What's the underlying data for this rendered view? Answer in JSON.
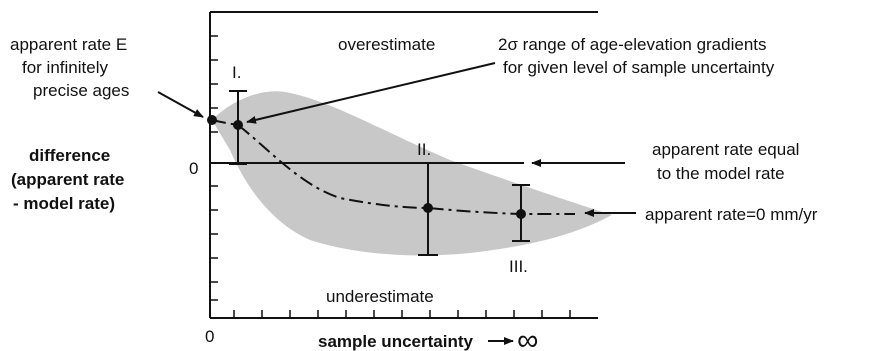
{
  "diagram": {
    "region_labels": {
      "over": "overestimate",
      "under": "underestimate"
    },
    "left_note": {
      "line1": "apparent rate E",
      "line2": "for infinitely",
      "line3": "precise ages"
    },
    "y_axis": {
      "line1": "difference",
      "line2": "(apparent rate",
      "line3": "- model rate)",
      "zero": "0"
    },
    "x_axis": {
      "label": "sample uncertainty",
      "zero": "0",
      "infinity": "∞"
    },
    "points": {
      "p1": "I.",
      "p2": "II.",
      "p3": "III."
    },
    "annotations": {
      "sigma_line1": "2σ range of age-elevation gradients",
      "sigma_line2": "for given level of sample uncertainty",
      "equal_line1": "apparent rate equal",
      "equal_line2": "to the model rate",
      "zero_rate": "apparent rate=0 mm/yr"
    },
    "colors": {
      "band": "#c8c8c8",
      "ink": "#111111"
    }
  }
}
